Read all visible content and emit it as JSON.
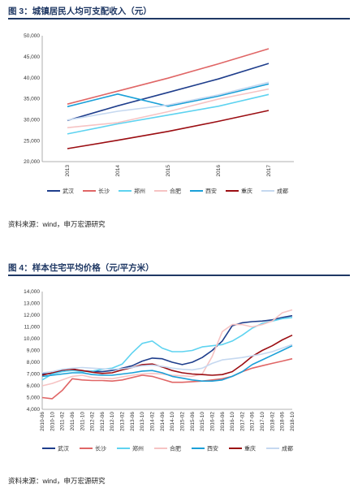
{
  "figures": [
    {
      "title": "图 3：城镇居民人均可支配收入（元）",
      "source": "资料来源：wind，申万宏源研究"
    },
    {
      "title": "图 4：样本住宅平均价格（元/平方米）",
      "source": "资料来源：wind，申万宏源研究"
    }
  ],
  "colors": {
    "武汉": "#1f3e8c",
    "长沙": "#e06666",
    "郑州": "#5ed3f0",
    "合肥": "#f6c3c3",
    "西安": "#1aa0d8",
    "重庆": "#9b0d12",
    "成都": "#c5d8f0"
  },
  "chart_data": [
    {
      "type": "line",
      "title": "",
      "x": [
        "2013",
        "2014",
        "2015",
        "2016",
        "2017"
      ],
      "ylim": [
        20000,
        50000
      ],
      "yticks": [
        "20,000",
        "25,000",
        "30,000",
        "35,000",
        "40,000",
        "45,000",
        "50,000"
      ],
      "grid": false,
      "legend": "bottom",
      "series": [
        {
          "name": "武汉",
          "values": [
            29800,
            33300,
            36500,
            39700,
            43400
          ]
        },
        {
          "name": "长沙",
          "values": [
            33700,
            36800,
            39900,
            43300,
            46900
          ]
        },
        {
          "name": "郑州",
          "values": [
            26600,
            29000,
            31100,
            33200,
            36000
          ]
        },
        {
          "name": "合肥",
          "values": [
            28100,
            29300,
            31900,
            34900,
            37300
          ]
        },
        {
          "name": "西安",
          "values": [
            33100,
            36100,
            33200,
            35600,
            38500
          ]
        },
        {
          "name": "重庆",
          "values": [
            23100,
            25100,
            27200,
            29600,
            32200
          ]
        },
        {
          "name": "成都",
          "values": [
            29900,
            32000,
            33500,
            35900,
            38900
          ]
        }
      ]
    },
    {
      "type": "line",
      "title": "",
      "x": [
        "2010-06",
        "2010-10",
        "2011-02",
        "2011-06",
        "2011-10",
        "2012-02",
        "2012-06",
        "2012-10",
        "2013-02",
        "2013-06",
        "2013-10",
        "2014-02",
        "2014-06",
        "2014-10",
        "2015-02",
        "2015-06",
        "2015-10",
        "2016-02",
        "2016-06",
        "2016-10",
        "2017-02",
        "2017-06",
        "2017-10",
        "2018-02",
        "2018-06",
        "2018-10"
      ],
      "ylim": [
        4000,
        14000
      ],
      "yticks": [
        "4,000",
        "5,000",
        "6,000",
        "7,000",
        "8,000",
        "9,000",
        "10,000",
        "11,000",
        "12,000",
        "13,000",
        "14,000"
      ],
      "grid": false,
      "legend": "bottom",
      "series": [
        {
          "name": "武汉",
          "values": [
            7000,
            7050,
            7300,
            7450,
            7250,
            7250,
            7200,
            7300,
            7500,
            7700,
            8100,
            8350,
            8300,
            8000,
            7800,
            8000,
            8400,
            9000,
            9800,
            11100,
            11350,
            11450,
            11500,
            11600,
            11800,
            11950
          ]
        },
        {
          "name": "长沙",
          "values": [
            5000,
            4900,
            5600,
            6600,
            6500,
            6450,
            6450,
            6400,
            6500,
            6700,
            6900,
            6800,
            6550,
            6300,
            6300,
            6350,
            6400,
            6500,
            6600,
            6800,
            7200,
            7500,
            7700,
            7900,
            8100,
            8300
          ]
        },
        {
          "name": "郑州",
          "values": [
            6500,
            7000,
            7200,
            7300,
            7200,
            7250,
            7400,
            7500,
            7850,
            8800,
            9600,
            9800,
            9200,
            8900,
            8900,
            9000,
            9300,
            9400,
            9500,
            9800,
            10300,
            10900,
            11300,
            11500,
            11700,
            11800
          ]
        },
        {
          "name": "合肥",
          "values": [
            6000,
            6200,
            6500,
            6800,
            6900,
            6700,
            6650,
            6600,
            6750,
            6900,
            7000,
            7050,
            7000,
            6900,
            6850,
            6800,
            7000,
            8500,
            10600,
            11200,
            11200,
            11000,
            11200,
            11500,
            12200,
            12450
          ]
        },
        {
          "name": "西安",
          "values": [
            6800,
            6900,
            7000,
            7100,
            7100,
            6950,
            6900,
            6900,
            7000,
            7100,
            7250,
            7300,
            7100,
            6800,
            6650,
            6500,
            6400,
            6400,
            6500,
            6800,
            7200,
            7800,
            8200,
            8600,
            9000,
            9400
          ]
        },
        {
          "name": "重庆",
          "values": [
            6900,
            7100,
            7350,
            7400,
            7300,
            7150,
            7050,
            7100,
            7350,
            7550,
            7800,
            7850,
            7600,
            7300,
            7100,
            7000,
            6950,
            6900,
            6950,
            7200,
            7800,
            8500,
            9000,
            9400,
            9900,
            10300
          ]
        },
        {
          "name": "成都",
          "values": [
            7100,
            7200,
            7400,
            7500,
            7550,
            7500,
            7450,
            7400,
            7450,
            7550,
            7700,
            7750,
            7650,
            7500,
            7400,
            7350,
            7500,
            7900,
            8200,
            8300,
            8400,
            8550,
            8700,
            8900,
            9200,
            9500
          ]
        }
      ]
    }
  ]
}
